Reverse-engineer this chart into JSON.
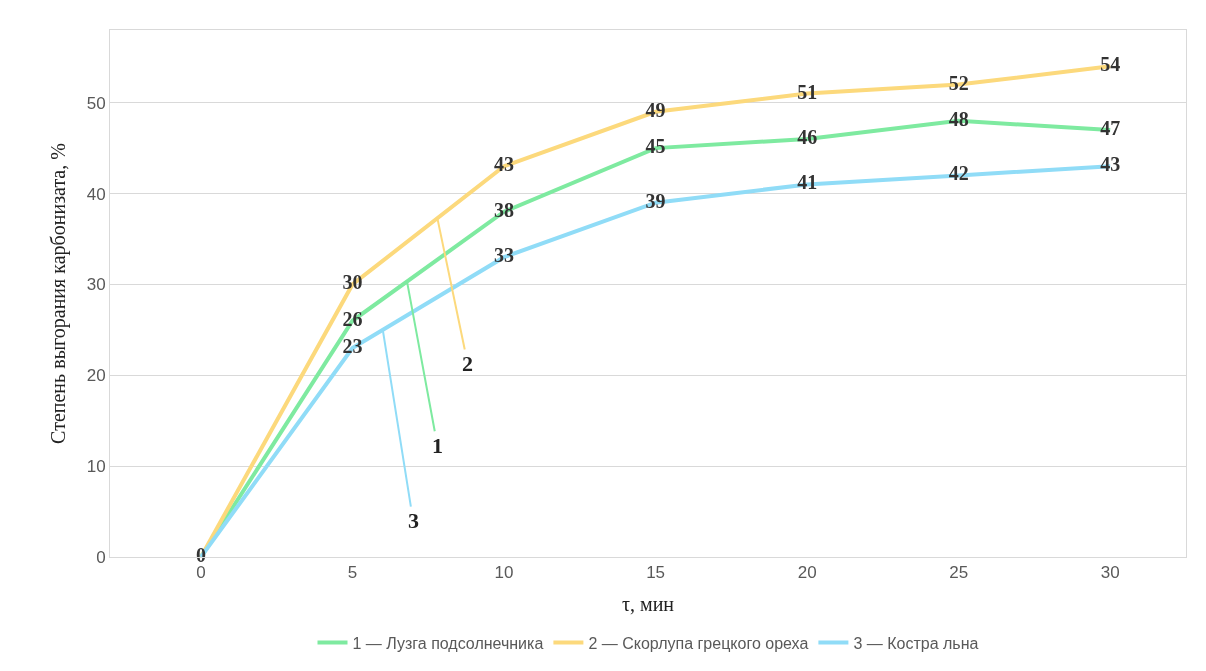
{
  "chart_data": {
    "type": "line",
    "xlabel": "τ, мин",
    "ylabel": "Степень выгорания карбонизата, %",
    "x": [
      0,
      5,
      10,
      15,
      20,
      25,
      30
    ],
    "series": [
      {
        "name": "1 — Лузга подсолнечника",
        "color": "#7eeaa0",
        "values": [
          0,
          26,
          38,
          45,
          46,
          48,
          47
        ],
        "value_labels": [
          "0",
          "26",
          "38",
          "45",
          "46",
          "48",
          "47"
        ]
      },
      {
        "name": "2 — Скорлупа грецкого ореха",
        "color": "#fcd97c",
        "values": [
          0,
          30,
          43,
          49,
          51,
          52,
          54
        ],
        "value_labels": [
          null,
          "30",
          "43",
          "49",
          "51",
          "52",
          "54"
        ]
      },
      {
        "name": "3 — Костра льна",
        "color": "#90dcf7",
        "values": [
          0,
          23,
          33,
          39,
          41,
          42,
          43
        ],
        "value_labels": [
          null,
          "23",
          "33",
          "39",
          "41",
          "42",
          "43"
        ]
      }
    ],
    "annotations": [
      {
        "text": "1",
        "x": 6.8,
        "y": 30.3
      },
      {
        "text": "2",
        "x": 7.8,
        "y": 37.3
      },
      {
        "text": "3",
        "x": 6,
        "y": 25
      }
    ],
    "xlim": [
      -3,
      32.5
    ],
    "xticks": [
      0,
      5,
      10,
      15,
      20,
      25,
      30
    ],
    "ylim": [
      0,
      58
    ],
    "yticks": [
      0,
      10,
      20,
      30,
      40,
      50
    ],
    "grid": "y",
    "legend": "bottom",
    "marker": "none",
    "line_style": "solid"
  }
}
